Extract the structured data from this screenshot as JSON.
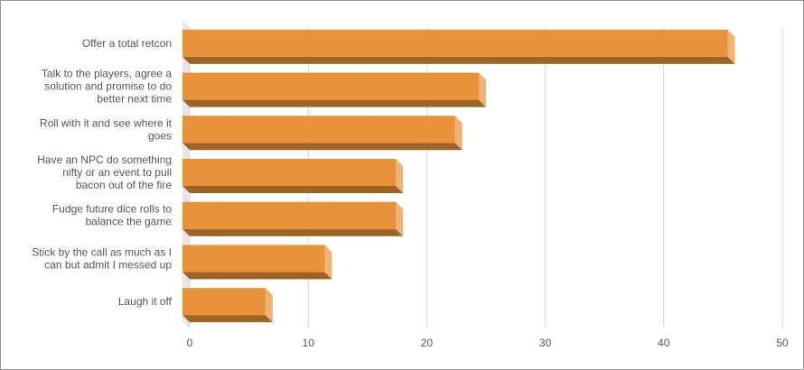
{
  "chart_data": {
    "type": "bar3d",
    "orientation": "horizontal",
    "categories": [
      "Offer a total retcon",
      "Talk to the players, agree a\nsolution and promise to do\nbetter next time",
      "Roll with it and see where it\ngoes",
      "Have an NPC do something\nnifty or an event to pull\nbacon out of the fire",
      "Fudge future dice rolls to\nbalance the game",
      "Stick by the call as much as I\ncan but admit I messed up",
      "Laugh it off"
    ],
    "values": [
      46,
      25,
      23,
      18,
      18,
      12,
      7
    ],
    "color": "#e8923a",
    "xlim": [
      0,
      50
    ],
    "xticks": [
      0,
      10,
      20,
      30,
      40,
      50
    ],
    "grid": true
  }
}
